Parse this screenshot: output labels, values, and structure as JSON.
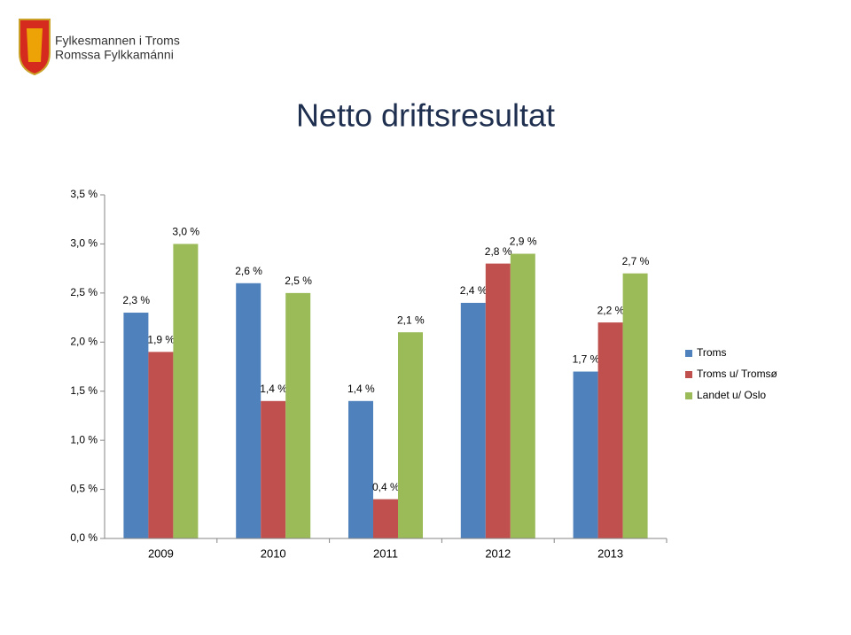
{
  "logo": {
    "lines": [
      "Fylkesmannen i Troms",
      "Romssa Fylkkamánni"
    ]
  },
  "chart_data": {
    "type": "bar",
    "title": "Netto driftsresultat",
    "categories": [
      "2009",
      "2010",
      "2011",
      "2012",
      "2013"
    ],
    "series": [
      {
        "name": "Troms",
        "color": "#4f81bd",
        "values": [
          2.3,
          2.6,
          1.4,
          2.4,
          1.7
        ],
        "value_labels": [
          "2,3 %",
          "2,6 %",
          "1,4 %",
          "2,4 %",
          "1,7 %"
        ]
      },
      {
        "name": "Troms u/ Tromsø",
        "color": "#c0504d",
        "values": [
          1.9,
          1.4,
          0.4,
          2.8,
          2.2
        ],
        "value_labels": [
          "1,9 %",
          "1,4 %",
          "0,4 %",
          "2,8 %",
          "2,2 %"
        ]
      },
      {
        "name": "Landet u/ Oslo",
        "color": "#9bbb59",
        "values": [
          3.0,
          2.5,
          2.1,
          2.9,
          2.7
        ],
        "value_labels": [
          "3,0 %",
          "2,5 %",
          "2,1 %",
          "2,9 %",
          "2,7 %"
        ]
      }
    ],
    "ylim": [
      0,
      3.5
    ],
    "yticks": [
      {
        "value": 0,
        "label": "0,0 %"
      },
      {
        "value": 0.5,
        "label": "0,5 %"
      },
      {
        "value": 1,
        "label": "1,0 %"
      },
      {
        "value": 1.5,
        "label": "1,5 %"
      },
      {
        "value": 2,
        "label": "2,0 %"
      },
      {
        "value": 2.5,
        "label": "2,5 %"
      },
      {
        "value": 3,
        "label": "3,0 %"
      },
      {
        "value": 3.5,
        "label": "3,5 %"
      }
    ],
    "grid": false,
    "legend": "right"
  }
}
